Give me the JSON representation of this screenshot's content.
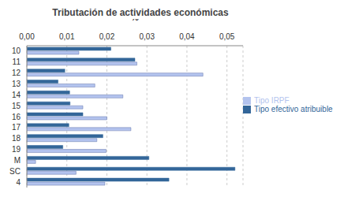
{
  "chart_data": {
    "type": "bar",
    "title": "Tributación de actividades económicas",
    "x_label": "%",
    "orientation": "horizontal",
    "categories": [
      "10",
      "11",
      "12",
      "13",
      "14",
      "15",
      "16",
      "17",
      "18",
      "19",
      "M",
      "SC",
      "4"
    ],
    "series": [
      {
        "name": "Tipo efectivo atribuible",
        "color": "#336699",
        "values": [
          0.021,
          0.027,
          0.0095,
          0.0078,
          0.0107,
          0.0108,
          0.014,
          0.0105,
          0.019,
          0.009,
          0.0305,
          0.052,
          0.0355
        ]
      },
      {
        "name": "Tipo IRPF",
        "color": "#b3c3ee",
        "values": [
          0.013,
          0.0275,
          0.044,
          0.017,
          0.024,
          0.014,
          0.02,
          0.026,
          0.0175,
          0.0198,
          0.0022,
          0.0123,
          0.0195
        ]
      }
    ],
    "xlim": [
      0,
      0.054
    ],
    "xticks": [
      {
        "value": 0,
        "label": "0,00"
      },
      {
        "value": 0.01,
        "label": "0,01"
      },
      {
        "value": 0.02,
        "label": "0,02"
      },
      {
        "value": 0.03,
        "label": "0,03"
      },
      {
        "value": 0.04,
        "label": "0,04"
      },
      {
        "value": 0.05,
        "label": "0,05"
      }
    ],
    "grid": true,
    "legend": "right"
  }
}
